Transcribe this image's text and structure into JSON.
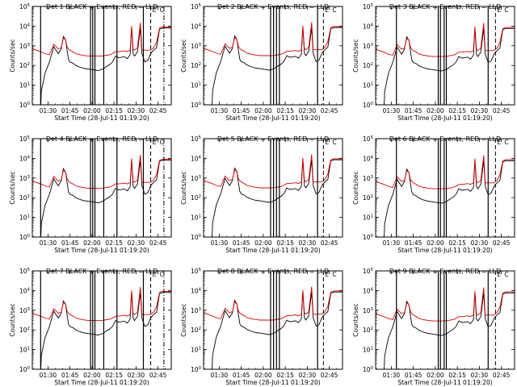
{
  "chart_data": {
    "type": "line",
    "layout": {
      "rows": 3,
      "cols": 3
    },
    "x_range": [
      "01:19:20",
      "02:54:00"
    ],
    "x_ticks": [
      "01:30",
      "01:45",
      "02:00",
      "02:15",
      "02:30",
      "02:45"
    ],
    "x_label": "Start Time (28-Jul-11 01:19:20)",
    "y_scale": "log",
    "y_range": [
      1,
      100000
    ],
    "y_ticks": [
      "10^0",
      "10^1",
      "10^2",
      "10^3",
      "10^4",
      "10^5"
    ],
    "y_label": "Counts/sec",
    "grid": false,
    "line_colors": {
      "events": "#000000",
      "lld": "#e00000"
    },
    "panels": [
      {
        "title": "Det 1 BLACK = Events, RED = LLD",
        "variant": "a",
        "solid_markers": [
          "01:25",
          "01:59",
          "02:00.5",
          "02:02",
          "02:08",
          "02:17",
          "02:35"
        ],
        "dashed_marker": "02:40",
        "dashdot_marker": "02:49",
        "marker_labels": [
          "E",
          "C"
        ]
      },
      {
        "title": "Det 2 BLACK = Events, RED = LLD",
        "variant": "b",
        "solid_markers": [
          "02:05",
          "02:07",
          "02:09",
          "02:11",
          "02:37"
        ],
        "dashed_marker": "02:41",
        "dashdot_marker": null,
        "marker_labels": [
          "E",
          "C"
        ]
      },
      {
        "title": "Det 3 BLACK = Events, RED = LLD",
        "variant": "c",
        "solid_markers": [
          "01:33.5",
          "02:02",
          "02:03.5",
          "02:06",
          "02:07.5",
          "02:36"
        ],
        "dashed_marker": "02:41",
        "dashdot_marker": null,
        "marker_labels": [
          "E",
          "C"
        ]
      },
      {
        "title": "Det 4 BLACK = Events, RED = LLD",
        "variant": "a",
        "solid_markers": [
          "01:25",
          "01:59",
          "02:00.5",
          "02:02",
          "02:08",
          "02:17",
          "02:35"
        ],
        "dashed_marker": "02:40",
        "dashdot_marker": "02:49",
        "marker_labels": [
          "E",
          "C"
        ]
      },
      {
        "title": "Det 5 BLACK = Events, RED = LLD",
        "variant": "b",
        "solid_markers": [
          "02:05",
          "02:07",
          "02:09",
          "02:11",
          "02:37"
        ],
        "dashed_marker": "02:41",
        "dashdot_marker": null,
        "marker_labels": [
          "E",
          "C"
        ]
      },
      {
        "title": "Det 6 BLACK = Events, RED = LLD",
        "variant": "c",
        "solid_markers": [
          "01:33.5",
          "02:02",
          "02:03.5",
          "02:06",
          "02:07.5",
          "02:36"
        ],
        "dashed_marker": "02:41",
        "dashdot_marker": null,
        "marker_labels": [
          "E",
          "C"
        ]
      },
      {
        "title": "Det 7 BLACK = Events, RED = LLD",
        "variant": "a",
        "solid_markers": [
          "01:25",
          "01:59",
          "02:00.5",
          "02:02",
          "02:08",
          "02:17",
          "02:35"
        ],
        "dashed_marker": "02:40",
        "dashdot_marker": "02:49",
        "marker_labels": [
          "E",
          "C"
        ]
      },
      {
        "title": "Det 8 BLACK = Events, RED = LLD",
        "variant": "b",
        "solid_markers": [
          "02:05",
          "02:07",
          "02:09",
          "02:11",
          "02:37"
        ],
        "dashed_marker": "02:41",
        "dashdot_marker": null,
        "marker_labels": [
          "E",
          "C"
        ]
      },
      {
        "title": "Det 9 BLACK = Events, RED = LLD",
        "variant": "c",
        "solid_markers": [
          "01:33.5",
          "02:02",
          "02:03.5",
          "02:06",
          "02:07.5",
          "02:36"
        ],
        "dashed_marker": "02:41",
        "dashdot_marker": null,
        "marker_labels": [
          "E",
          "C"
        ]
      }
    ],
    "series": [
      {
        "name": "Events",
        "color": "#000000",
        "x": [
          "01:19:20",
          "01:22:00",
          "01:25:00",
          "01:25:30",
          "01:28:00",
          "01:31:00",
          "01:34:00",
          "01:37:00",
          "01:39:00",
          "01:40:30",
          "01:42:00",
          "01:43:00",
          "01:44:00",
          "01:45:00",
          "01:47:00",
          "01:49:00",
          "01:52:00",
          "01:55:00",
          "01:58:00",
          "02:01:00",
          "02:04:00",
          "02:06:00",
          "02:08:00",
          "02:10:00",
          "02:12:00",
          "02:14:00",
          "02:16:00",
          "02:18:00",
          "02:20:00",
          "02:22:00",
          "02:24:00",
          "02:26:00",
          "02:27:00",
          "02:28:00",
          "02:29:00",
          "02:31:00",
          "02:33:00",
          "02:34:00",
          "02:36:00",
          "02:38:00",
          "02:40:00",
          "02:41:00",
          "02:42:00",
          "02:44:00",
          "02:46:00",
          "02:48:00",
          "02:50:00",
          "02:52:00",
          "02:54:00"
        ],
        "y": [
          0,
          0,
          0,
          5,
          40,
          150,
          900,
          400,
          700,
          3000,
          2000,
          600,
          200,
          150,
          130,
          100,
          80,
          70,
          65,
          60,
          55,
          60,
          70,
          90,
          110,
          150,
          300,
          250,
          260,
          280,
          220,
          350,
          9000,
          400,
          300,
          500,
          8000,
          400,
          150,
          180,
          400,
          500,
          600,
          800,
          7000,
          8000,
          8000,
          8000,
          8000
        ]
      },
      {
        "name": "LLD",
        "color": "#e00000",
        "x": [
          "01:19:20",
          "01:22:00",
          "01:25:00",
          "01:28:00",
          "01:31:00",
          "01:34:00",
          "01:37:00",
          "01:39:00",
          "01:40:30",
          "01:42:00",
          "01:43:00",
          "01:44:00",
          "01:45:00",
          "01:47:00",
          "01:49:00",
          "01:52:00",
          "01:55:00",
          "01:58:00",
          "02:01:00",
          "02:04:00",
          "02:06:00",
          "02:08:00",
          "02:10:00",
          "02:12:00",
          "02:14:00",
          "02:16:00",
          "02:18:00",
          "02:20:00",
          "02:22:00",
          "02:24:00",
          "02:26:00",
          "02:27:00",
          "02:28:00",
          "02:29:00",
          "02:31:00",
          "02:33:00",
          "02:34:00",
          "02:36:00",
          "02:38:00",
          "02:40:00",
          "02:41:00",
          "02:42:00",
          "02:44:00",
          "02:46:00",
          "02:48:00",
          "02:50:00",
          "02:52:00",
          "02:54:00"
        ],
        "y": [
          700,
          600,
          500,
          400,
          350,
          1200,
          700,
          800,
          2500,
          2000,
          900,
          700,
          600,
          500,
          400,
          350,
          320,
          300,
          300,
          300,
          300,
          310,
          330,
          350,
          400,
          500,
          500,
          520,
          550,
          500,
          600,
          10000,
          700,
          600,
          800,
          15000,
          600,
          600,
          600,
          600,
          700,
          800,
          1500,
          8000,
          9000,
          9000,
          9000,
          9000
        ]
      }
    ]
  }
}
